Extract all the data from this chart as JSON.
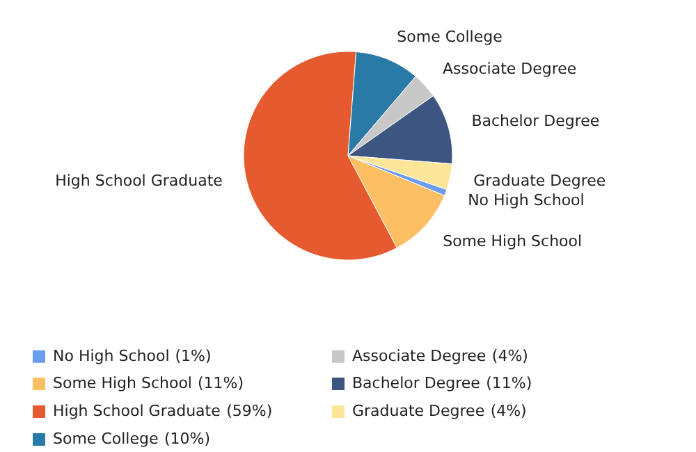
{
  "chart_data": {
    "type": "pie",
    "categories": [
      "No High School",
      "Some High School",
      "High School Graduate",
      "Some College",
      "Associate Degree",
      "Bachelor Degree",
      "Graduate Degree"
    ],
    "values": [
      1,
      11,
      59,
      10,
      4,
      11,
      4
    ],
    "value_labels": [
      "(1%)",
      "(11%)",
      "(59%)",
      "(10%)",
      "(4%)",
      "(11%)",
      "(4%)"
    ],
    "colors": [
      "#6a9cf0",
      "#fdbf63",
      "#e55b2f",
      "#2a7aa8",
      "#c8c8c8",
      "#3c5581",
      "#fde599"
    ],
    "legend": "bottom"
  }
}
